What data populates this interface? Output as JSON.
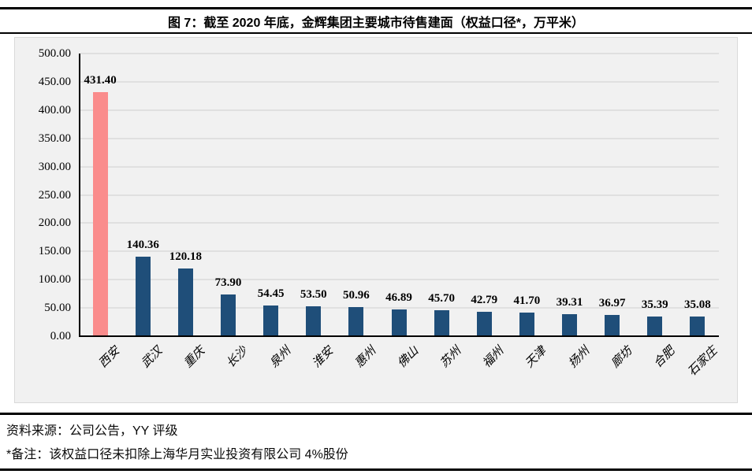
{
  "figure": {
    "title": "图 7：截至 2020 年底，金辉集团主要城市待售建面（权益口径*，万平米）",
    "source_note": "资料来源：公司公告，YY 评级",
    "footnote": "*备注：该权益口径未扣除上海华月实业投资有限公司 4%股份"
  },
  "chart_data": {
    "type": "bar",
    "title": "图 7：截至 2020 年底，金辉集团主要城市待售建面（权益口径*，万平米）",
    "categories": [
      "西安",
      "武汉",
      "重庆",
      "长沙",
      "泉州",
      "淮安",
      "惠州",
      "佛山",
      "苏州",
      "福州",
      "天津",
      "扬州",
      "廊坊",
      "合肥",
      "石家庄"
    ],
    "values": [
      431.4,
      140.36,
      120.18,
      73.9,
      54.45,
      53.5,
      50.96,
      46.89,
      45.7,
      42.79,
      41.7,
      39.31,
      36.97,
      35.39,
      35.08
    ],
    "value_labels": [
      "431.40",
      "140.36",
      "120.18",
      "73.90",
      "54.45",
      "53.50",
      "50.96",
      "46.89",
      "45.70",
      "42.79",
      "41.70",
      "39.31",
      "36.97",
      "35.39",
      "35.08"
    ],
    "xlabel": "",
    "ylabel": "",
    "ylim": [
      0,
      500
    ],
    "ytick_step": 50,
    "ytick_labels": [
      "0.00",
      "50.00",
      "100.00",
      "150.00",
      "200.00",
      "250.00",
      "300.00",
      "350.00",
      "400.00",
      "450.00",
      "500.00"
    ],
    "grid": true,
    "legend": false,
    "highlight_index": 0,
    "highlight_color": "#FA8C8C",
    "bar_color": "#1F4E79",
    "panel_background": "#F1F1F1",
    "gridline_color": "#E0E0E0",
    "axis_color": "#000000"
  }
}
